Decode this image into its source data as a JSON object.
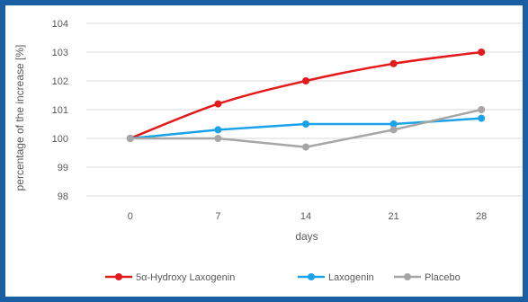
{
  "chart_data": {
    "type": "line",
    "title": "",
    "xlabel": "days",
    "ylabel": "percentage of the increase [%]",
    "categories": [
      "0",
      "7",
      "14",
      "21",
      "28"
    ],
    "ylim": [
      98,
      104
    ],
    "yticks": [
      "98",
      "99",
      "100",
      "101",
      "102",
      "103",
      "104"
    ],
    "grid": "horizontal",
    "legend_position": "bottom",
    "series": [
      {
        "name": "5α-Hydroxy Laxogenin",
        "color": "#e31a1c",
        "values": [
          100.0,
          101.2,
          102.0,
          102.6,
          103.0
        ]
      },
      {
        "name": "Laxogenin",
        "color": "#1aa3e8",
        "values": [
          100.0,
          100.3,
          100.5,
          100.5,
          100.7
        ]
      },
      {
        "name": "Placebo",
        "color": "#a6a6a6",
        "values": [
          100.0,
          100.0,
          99.7,
          100.3,
          101.0
        ]
      }
    ]
  }
}
